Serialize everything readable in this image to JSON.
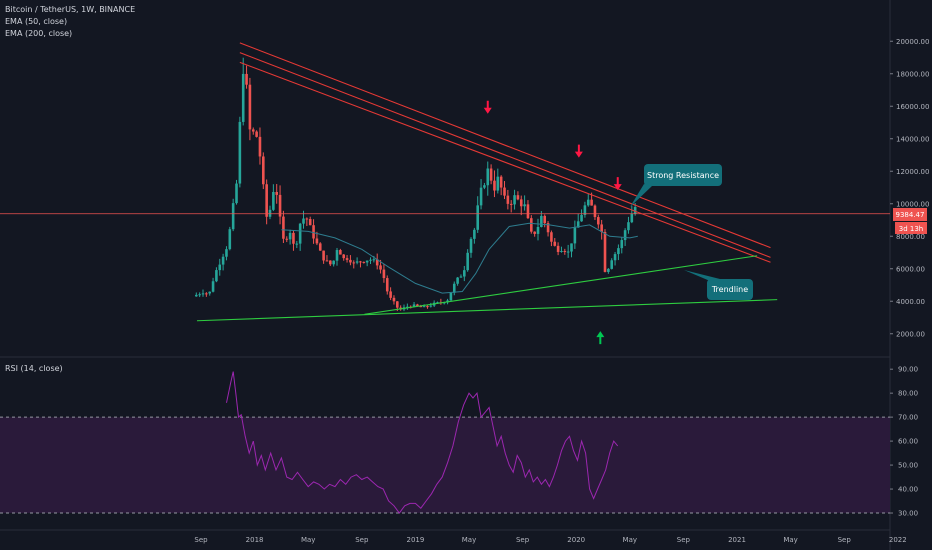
{
  "legend": {
    "title": "Bitcoin / TetherUS, 1W, BINANCE",
    "ema50": "EMA (50, close)",
    "ema200": "EMA (200, close)",
    "rsi": "RSI (14, close)"
  },
  "colors": {
    "background": "#131722",
    "up": "#26a69a",
    "down": "#ef5350",
    "resistance": "#e53935",
    "trendline": "#2ecc40",
    "ema": "#2e7d8f",
    "rsi_line": "#9c27b0",
    "rsi_band": "#2a1a3a",
    "price_line": "#ef5350",
    "callout": "#136f7a"
  },
  "price_label": "9384.47",
  "timer_label": "3d 13h",
  "callouts": {
    "resistance": "Strong Resistance",
    "trendline": "Trendline"
  },
  "chart_data": [
    {
      "type": "candlestick",
      "title": "Bitcoin / TetherUS, 1W, BINANCE",
      "y_ticks": [
        2000,
        4000,
        6000,
        8000,
        10000,
        12000,
        14000,
        16000,
        18000,
        20000
      ],
      "ylim": [
        1000,
        21000
      ],
      "x_ticks": [
        {
          "label": "Sep",
          "t": 0.0
        },
        {
          "label": "2018",
          "t": 4.0
        },
        {
          "label": "May",
          "t": 8.0
        },
        {
          "label": "Sep",
          "t": 12.0
        },
        {
          "label": "2019",
          "t": 16.0
        },
        {
          "label": "May",
          "t": 20.0
        },
        {
          "label": "Sep",
          "t": 24.0
        },
        {
          "label": "2020",
          "t": 28.0
        },
        {
          "label": "May",
          "t": 32.0
        },
        {
          "label": "Sep",
          "t": 36.0
        },
        {
          "label": "2021",
          "t": 40.0
        },
        {
          "label": "May",
          "t": 44.0
        },
        {
          "label": "Sep",
          "t": 48.0
        },
        {
          "label": "2022",
          "t": 52.0
        }
      ],
      "close_path": [
        [
          -0.6,
          4300
        ],
        [
          0.2,
          4600
        ],
        [
          0.6,
          4400
        ],
        [
          1.0,
          5600
        ],
        [
          1.5,
          6600
        ],
        [
          2.0,
          7500
        ],
        [
          2.4,
          9800
        ],
        [
          2.7,
          11500
        ],
        [
          3.0,
          16500
        ],
        [
          3.2,
          19000
        ],
        [
          3.4,
          17000
        ],
        [
          3.7,
          14000
        ],
        [
          4.0,
          14500
        ],
        [
          4.3,
          13800
        ],
        [
          4.6,
          11300
        ],
        [
          5.0,
          8500
        ],
        [
          5.3,
          10800
        ],
        [
          5.6,
          11000
        ],
        [
          5.9,
          9000
        ],
        [
          6.2,
          7500
        ],
        [
          6.6,
          8500
        ],
        [
          7.0,
          7100
        ],
        [
          7.4,
          8800
        ],
        [
          7.8,
          9300
        ],
        [
          8.2,
          8400
        ],
        [
          8.6,
          7600
        ],
        [
          9.0,
          6800
        ],
        [
          9.4,
          6400
        ],
        [
          9.8,
          6200
        ],
        [
          10.2,
          7400
        ],
        [
          10.6,
          6600
        ],
        [
          11.0,
          6700
        ],
        [
          11.4,
          6300
        ],
        [
          12.0,
          6500
        ],
        [
          12.6,
          6600
        ],
        [
          13.2,
          6300
        ],
        [
          13.6,
          5600
        ],
        [
          14.0,
          4300
        ],
        [
          14.4,
          3900
        ],
        [
          14.8,
          3450
        ],
        [
          15.2,
          3600
        ],
        [
          15.6,
          3750
        ],
        [
          16.0,
          3700
        ],
        [
          16.6,
          3600
        ],
        [
          17.2,
          3800
        ],
        [
          17.8,
          3900
        ],
        [
          18.4,
          4100
        ],
        [
          19.0,
          5200
        ],
        [
          19.6,
          5800
        ],
        [
          20.0,
          7600
        ],
        [
          20.4,
          8400
        ],
        [
          20.8,
          10500
        ],
        [
          21.2,
          11500
        ],
        [
          21.5,
          12300
        ],
        [
          21.8,
          10800
        ],
        [
          22.2,
          11600
        ],
        [
          22.6,
          10300
        ],
        [
          23.0,
          10000
        ],
        [
          23.4,
          10400
        ],
        [
          23.8,
          10100
        ],
        [
          24.2,
          9800
        ],
        [
          24.6,
          8100
        ],
        [
          25.0,
          8300
        ],
        [
          25.4,
          9200
        ],
        [
          25.8,
          8600
        ],
        [
          26.2,
          7500
        ],
        [
          26.6,
          7200
        ],
        [
          27.0,
          7300
        ],
        [
          27.4,
          7000
        ],
        [
          27.8,
          8100
        ],
        [
          28.2,
          9000
        ],
        [
          28.6,
          9800
        ],
        [
          29.0,
          10100
        ],
        [
          29.4,
          9300
        ],
        [
          29.8,
          8700
        ],
        [
          30.0,
          7800
        ],
        [
          30.2,
          5300
        ],
        [
          30.5,
          6500
        ],
        [
          30.8,
          6800
        ],
        [
          31.1,
          7200
        ],
        [
          31.4,
          7700
        ],
        [
          31.8,
          8800
        ],
        [
          32.2,
          9500
        ],
        [
          32.4,
          9800
        ],
        [
          32.6,
          9384.47
        ]
      ],
      "ema_path": [
        [
          6.0,
          8400
        ],
        [
          8.0,
          8300
        ],
        [
          10.0,
          7900
        ],
        [
          12.0,
          7200
        ],
        [
          14.0,
          6100
        ],
        [
          16.0,
          5100
        ],
        [
          18.0,
          4500
        ],
        [
          19.5,
          4600
        ],
        [
          20.5,
          5700
        ],
        [
          21.5,
          7200
        ],
        [
          23.0,
          8600
        ],
        [
          24.5,
          8800
        ],
        [
          26.0,
          8700
        ],
        [
          27.5,
          8500
        ],
        [
          29.0,
          8700
        ],
        [
          30.5,
          8000
        ],
        [
          32.0,
          7900
        ],
        [
          32.6,
          8000
        ]
      ],
      "resistance_lines": [
        [
          [
            2.9,
            19900
          ],
          [
            42.5,
            7300
          ]
        ],
        [
          [
            2.9,
            19300
          ],
          [
            42.5,
            6700
          ]
        ],
        [
          [
            2.9,
            18700
          ],
          [
            42.5,
            6400
          ]
        ]
      ],
      "trendlines": [
        [
          [
            -0.3,
            2800
          ],
          [
            43.0,
            4100
          ]
        ],
        [
          [
            12.2,
            3200
          ],
          [
            41.5,
            6800
          ]
        ]
      ],
      "current_price": 9384.47
    },
    {
      "type": "line",
      "title": "RSI (14, close)",
      "y_ticks": [
        30,
        40,
        50,
        60,
        70,
        80,
        90
      ],
      "ylim": [
        25,
        93
      ],
      "band": [
        30,
        70
      ],
      "values": [
        [
          1.9,
          76
        ],
        [
          2.2,
          84
        ],
        [
          2.4,
          89
        ],
        [
          2.6,
          80
        ],
        [
          2.8,
          70
        ],
        [
          3.0,
          71
        ],
        [
          3.3,
          62
        ],
        [
          3.6,
          55
        ],
        [
          3.9,
          60
        ],
        [
          4.2,
          50
        ],
        [
          4.5,
          54
        ],
        [
          4.8,
          48
        ],
        [
          5.2,
          55
        ],
        [
          5.6,
          48
        ],
        [
          6.0,
          53
        ],
        [
          6.4,
          45
        ],
        [
          6.8,
          44
        ],
        [
          7.2,
          47
        ],
        [
          7.6,
          44
        ],
        [
          8.0,
          41
        ],
        [
          8.4,
          43
        ],
        [
          8.8,
          42
        ],
        [
          9.2,
          40
        ],
        [
          9.6,
          42
        ],
        [
          10.0,
          41
        ],
        [
          10.4,
          44
        ],
        [
          10.8,
          42
        ],
        [
          11.2,
          45
        ],
        [
          11.6,
          46
        ],
        [
          12.0,
          44
        ],
        [
          12.4,
          45
        ],
        [
          12.8,
          43
        ],
        [
          13.2,
          41
        ],
        [
          13.6,
          40
        ],
        [
          14.0,
          35
        ],
        [
          14.4,
          33
        ],
        [
          14.8,
          30
        ],
        [
          15.2,
          33
        ],
        [
          15.6,
          34
        ],
        [
          16.0,
          34
        ],
        [
          16.4,
          32
        ],
        [
          16.8,
          35
        ],
        [
          17.2,
          38
        ],
        [
          17.6,
          42
        ],
        [
          18.0,
          45
        ],
        [
          18.4,
          51
        ],
        [
          18.8,
          58
        ],
        [
          19.2,
          68
        ],
        [
          19.6,
          75
        ],
        [
          20.0,
          80
        ],
        [
          20.3,
          78
        ],
        [
          20.6,
          80
        ],
        [
          20.9,
          70
        ],
        [
          21.2,
          72
        ],
        [
          21.5,
          74
        ],
        [
          21.8,
          66
        ],
        [
          22.1,
          58
        ],
        [
          22.4,
          62
        ],
        [
          22.7,
          55
        ],
        [
          23.0,
          50
        ],
        [
          23.3,
          47
        ],
        [
          23.6,
          54
        ],
        [
          23.9,
          51
        ],
        [
          24.2,
          45
        ],
        [
          24.5,
          48
        ],
        [
          24.8,
          43
        ],
        [
          25.1,
          45
        ],
        [
          25.4,
          42
        ],
        [
          25.7,
          44
        ],
        [
          26.0,
          41
        ],
        [
          26.3,
          45
        ],
        [
          26.6,
          50
        ],
        [
          26.9,
          56
        ],
        [
          27.2,
          60
        ],
        [
          27.5,
          62
        ],
        [
          27.8,
          56
        ],
        [
          28.1,
          52
        ],
        [
          28.4,
          60
        ],
        [
          28.7,
          55
        ],
        [
          29.0,
          40
        ],
        [
          29.3,
          36
        ],
        [
          29.6,
          40
        ],
        [
          29.9,
          44
        ],
        [
          30.2,
          48
        ],
        [
          30.5,
          55
        ],
        [
          30.8,
          60
        ],
        [
          31.1,
          58
        ]
      ]
    }
  ]
}
